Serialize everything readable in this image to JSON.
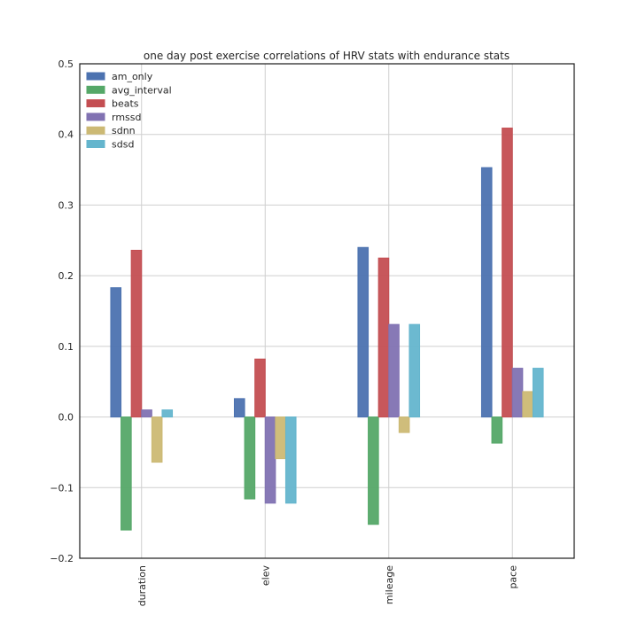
{
  "chart_data": {
    "type": "bar",
    "title": "one day post exercise correlations of HRV stats with endurance stats",
    "xlabel": "",
    "ylabel": "",
    "categories": [
      "duration",
      "elev",
      "mileage",
      "pace"
    ],
    "ylim": [
      -0.2,
      0.5
    ],
    "yticks": [
      -0.2,
      -0.1,
      0.0,
      0.1,
      0.2,
      0.3,
      0.4,
      0.5
    ],
    "ytick_labels": [
      "−0.2",
      "−0.1",
      "0.0",
      "0.1",
      "0.2",
      "0.3",
      "0.4",
      "0.5"
    ],
    "grid": true,
    "legend_position": "top-left",
    "series": [
      {
        "name": "am_only",
        "color": "#4c72b0",
        "values": [
          0.183,
          0.026,
          0.24,
          0.353
        ]
      },
      {
        "name": "avg_interval",
        "color": "#55a868",
        "values": [
          -0.16,
          -0.116,
          -0.152,
          -0.037
        ]
      },
      {
        "name": "beats",
        "color": "#c44e52",
        "values": [
          0.236,
          0.082,
          0.225,
          0.409
        ]
      },
      {
        "name": "rmssd",
        "color": "#8172b2",
        "values": [
          0.01,
          -0.122,
          0.131,
          0.069
        ]
      },
      {
        "name": "sdnn",
        "color": "#ccb974",
        "values": [
          -0.064,
          -0.059,
          -0.022,
          0.036
        ]
      },
      {
        "name": "sdsd",
        "color": "#64b5cd",
        "values": [
          0.01,
          -0.122,
          0.131,
          0.069
        ]
      }
    ]
  }
}
